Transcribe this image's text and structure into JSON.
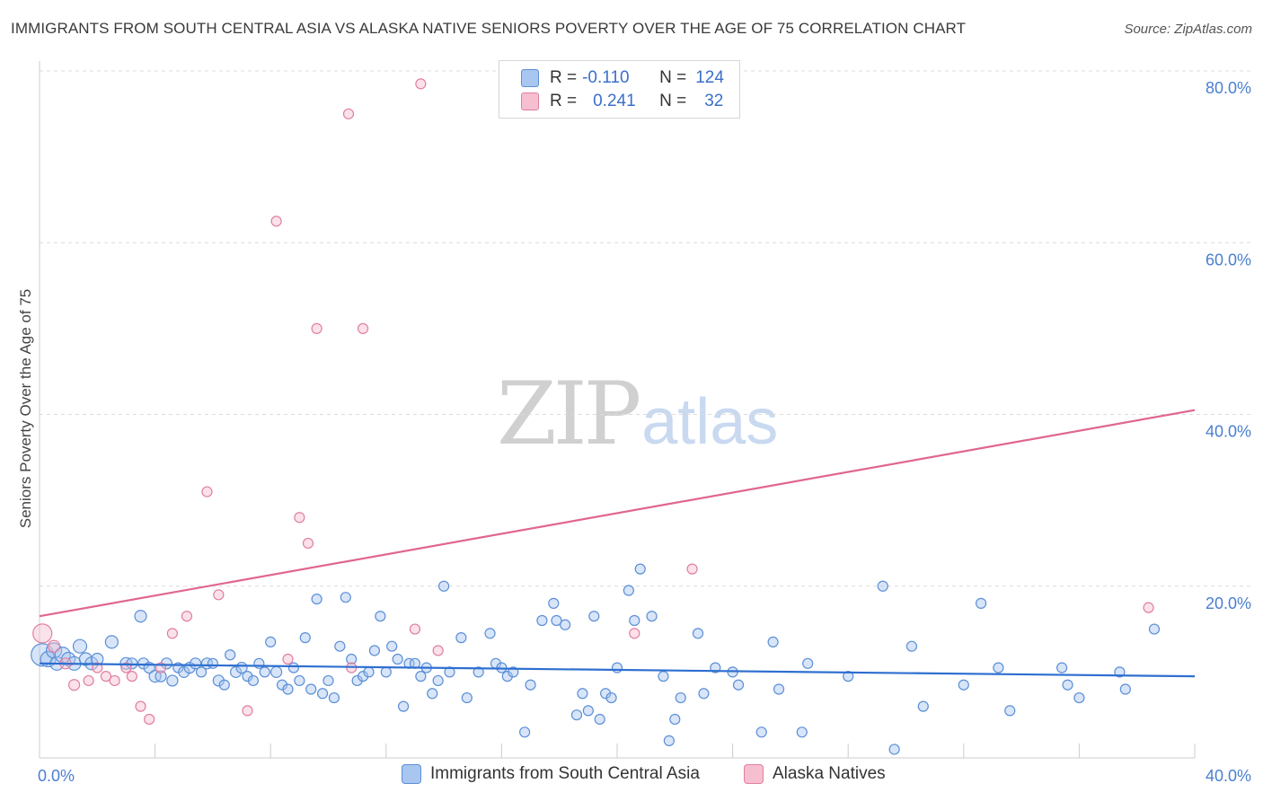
{
  "chart_data": {
    "type": "scatter",
    "title": "IMMIGRANTS FROM SOUTH CENTRAL ASIA VS ALASKA NATIVE SENIORS POVERTY OVER THE AGE OF 75 CORRELATION CHART",
    "source": "Source: ZipAtlas.com",
    "ylabel": "Seniors Poverty Over the Age of 75",
    "xlim": [
      0,
      40
    ],
    "ylim": [
      0,
      80
    ],
    "x_tick_labels": [
      "0.0%",
      "40.0%"
    ],
    "y_ticks": [
      20,
      40,
      60,
      80
    ],
    "y_tick_labels": [
      "20.0%",
      "40.0%",
      "60.0%",
      "80.0%"
    ],
    "watermark": {
      "zip": "ZIP",
      "atlas": "atlas"
    },
    "colors": {
      "blue_fill": "#a8c6ef",
      "blue_stroke": "#5b8fd6",
      "blue_line": "#2e6fd0",
      "pink_fill": "#f6bfd0",
      "pink_stroke": "#e07f9f",
      "pink_line": "#e0668f",
      "accent_text": "#3b6fc9"
    },
    "legend_stats": [
      {
        "r_label": "R =",
        "r": "-0.110",
        "n_label": "N =",
        "n": "124",
        "color": "blue"
      },
      {
        "r_label": "R =",
        "r": "0.241",
        "n_label": "N =",
        "n": "32",
        "color": "pink"
      }
    ],
    "series": [
      {
        "name": "Immigrants from South Central Asia",
        "color": "blue",
        "trend": {
          "x0": 0,
          "y0": 11.0,
          "x1": 40,
          "y1": 9.5
        },
        "points": [
          [
            0.1,
            12.0,
            22
          ],
          [
            0.3,
            11.5,
            14
          ],
          [
            0.5,
            12.5,
            14
          ],
          [
            0.6,
            11.0,
            12
          ],
          [
            0.8,
            12.0,
            14
          ],
          [
            1.0,
            11.5,
            12
          ],
          [
            1.2,
            11.0,
            12
          ],
          [
            1.4,
            13.0,
            12
          ],
          [
            1.6,
            11.5,
            11
          ],
          [
            1.8,
            11.0,
            11
          ],
          [
            2.0,
            11.5,
            10
          ],
          [
            2.5,
            13.5,
            11
          ],
          [
            3.0,
            11.0,
            10
          ],
          [
            3.2,
            11.0,
            9
          ],
          [
            3.5,
            16.5,
            10
          ],
          [
            3.6,
            11.0,
            9
          ],
          [
            3.8,
            10.5,
            9
          ],
          [
            4.0,
            9.5,
            10
          ],
          [
            4.2,
            9.5,
            9
          ],
          [
            4.4,
            11.0,
            9
          ],
          [
            4.6,
            9.0,
            9
          ],
          [
            4.8,
            10.5,
            8
          ],
          [
            5.0,
            10.0,
            9
          ],
          [
            5.2,
            10.5,
            9
          ],
          [
            5.4,
            11.0,
            9
          ],
          [
            5.6,
            10.0,
            8
          ],
          [
            5.8,
            11.0,
            9
          ],
          [
            6.0,
            11.0,
            8
          ],
          [
            6.2,
            9.0,
            9
          ],
          [
            6.4,
            8.5,
            8
          ],
          [
            6.6,
            12.0,
            8
          ],
          [
            6.8,
            10.0,
            9
          ],
          [
            7.0,
            10.5,
            9
          ],
          [
            7.2,
            9.5,
            8
          ],
          [
            7.4,
            9.0,
            8
          ],
          [
            7.6,
            11.0,
            8
          ],
          [
            7.8,
            10.0,
            8
          ],
          [
            8.0,
            13.5,
            8
          ],
          [
            8.2,
            10.0,
            9
          ],
          [
            8.4,
            8.5,
            8
          ],
          [
            8.6,
            8.0,
            8
          ],
          [
            8.8,
            10.5,
            8
          ],
          [
            9.0,
            9.0,
            8
          ],
          [
            9.2,
            14.0,
            8
          ],
          [
            9.4,
            8.0,
            8
          ],
          [
            9.6,
            18.5,
            8
          ],
          [
            9.8,
            7.5,
            8
          ],
          [
            10.0,
            9.0,
            8
          ],
          [
            10.2,
            7.0,
            8
          ],
          [
            10.4,
            13.0,
            8
          ],
          [
            10.6,
            18.7,
            8
          ],
          [
            10.8,
            11.5,
            8
          ],
          [
            11.0,
            9.0,
            8
          ],
          [
            11.2,
            9.5,
            8
          ],
          [
            11.4,
            10.0,
            8
          ],
          [
            11.6,
            12.5,
            8
          ],
          [
            11.8,
            16.5,
            8
          ],
          [
            12.0,
            10.0,
            8
          ],
          [
            12.2,
            13.0,
            8
          ],
          [
            12.4,
            11.5,
            8
          ],
          [
            12.6,
            6.0,
            8
          ],
          [
            12.8,
            11.0,
            8
          ],
          [
            13.0,
            11.0,
            8
          ],
          [
            13.2,
            9.5,
            8
          ],
          [
            13.4,
            10.5,
            8
          ],
          [
            13.6,
            7.5,
            8
          ],
          [
            13.8,
            9.0,
            8
          ],
          [
            14.0,
            20.0,
            8
          ],
          [
            14.2,
            10.0,
            8
          ],
          [
            14.6,
            14.0,
            8
          ],
          [
            14.8,
            7.0,
            8
          ],
          [
            15.2,
            10.0,
            8
          ],
          [
            15.6,
            14.5,
            8
          ],
          [
            15.8,
            11.0,
            8
          ],
          [
            16.0,
            10.5,
            8
          ],
          [
            16.2,
            9.5,
            8
          ],
          [
            16.4,
            10.0,
            8
          ],
          [
            16.8,
            3.0,
            8
          ],
          [
            17.0,
            8.5,
            8
          ],
          [
            17.4,
            16.0,
            8
          ],
          [
            17.8,
            18.0,
            8
          ],
          [
            17.9,
            16.0,
            8
          ],
          [
            18.2,
            15.5,
            8
          ],
          [
            18.6,
            5.0,
            8
          ],
          [
            18.8,
            7.5,
            8
          ],
          [
            19.0,
            5.5,
            8
          ],
          [
            19.2,
            16.5,
            8
          ],
          [
            19.4,
            4.5,
            8
          ],
          [
            19.6,
            7.5,
            8
          ],
          [
            19.8,
            7.0,
            8
          ],
          [
            20.0,
            10.5,
            8
          ],
          [
            20.4,
            19.5,
            8
          ],
          [
            20.6,
            16.0,
            8
          ],
          [
            20.8,
            22.0,
            8
          ],
          [
            21.2,
            16.5,
            8
          ],
          [
            21.6,
            9.5,
            8
          ],
          [
            21.8,
            2.0,
            8
          ],
          [
            22.0,
            4.5,
            8
          ],
          [
            22.2,
            7.0,
            8
          ],
          [
            22.8,
            14.5,
            8
          ],
          [
            23.0,
            7.5,
            8
          ],
          [
            23.4,
            10.5,
            8
          ],
          [
            24.0,
            10.0,
            8
          ],
          [
            24.2,
            8.5,
            8
          ],
          [
            25.0,
            3.0,
            8
          ],
          [
            25.4,
            13.5,
            8
          ],
          [
            25.6,
            8.0,
            8
          ],
          [
            26.4,
            3.0,
            8
          ],
          [
            26.6,
            11.0,
            8
          ],
          [
            28.0,
            9.5,
            8
          ],
          [
            29.2,
            20.0,
            8
          ],
          [
            29.6,
            1.0,
            8
          ],
          [
            30.2,
            13.0,
            8
          ],
          [
            30.6,
            6.0,
            8
          ],
          [
            32.0,
            8.5,
            8
          ],
          [
            32.6,
            18.0,
            8
          ],
          [
            33.2,
            10.5,
            8
          ],
          [
            33.6,
            5.5,
            8
          ],
          [
            35.4,
            10.5,
            8
          ],
          [
            35.6,
            8.5,
            8
          ],
          [
            36.0,
            7.0,
            8
          ],
          [
            37.4,
            10.0,
            8
          ],
          [
            37.6,
            8.0,
            8
          ],
          [
            38.6,
            15.0,
            8
          ]
        ]
      },
      {
        "name": "Alaska Natives",
        "color": "pink",
        "trend": {
          "x0": 0,
          "y0": 16.5,
          "x1": 40,
          "y1": 40.5
        },
        "points": [
          [
            0.1,
            14.5,
            18
          ],
          [
            0.5,
            13.0,
            10
          ],
          [
            0.9,
            11.0,
            9
          ],
          [
            1.2,
            8.5,
            9
          ],
          [
            1.7,
            9.0,
            8
          ],
          [
            2.0,
            10.5,
            8
          ],
          [
            2.3,
            9.5,
            8
          ],
          [
            2.6,
            9.0,
            8
          ],
          [
            3.0,
            10.5,
            8
          ],
          [
            3.2,
            9.5,
            8
          ],
          [
            3.5,
            6.0,
            8
          ],
          [
            3.8,
            4.5,
            8
          ],
          [
            4.2,
            10.5,
            8
          ],
          [
            4.6,
            14.5,
            8
          ],
          [
            5.1,
            16.5,
            8
          ],
          [
            5.8,
            31.0,
            8
          ],
          [
            6.2,
            19.0,
            8
          ],
          [
            7.2,
            5.5,
            8
          ],
          [
            8.2,
            62.5,
            8
          ],
          [
            8.6,
            11.5,
            8
          ],
          [
            9.0,
            28.0,
            8
          ],
          [
            9.3,
            25.0,
            8
          ],
          [
            9.6,
            50.0,
            8
          ],
          [
            10.7,
            75.0,
            8
          ],
          [
            10.8,
            10.5,
            8
          ],
          [
            11.2,
            50.0,
            8
          ],
          [
            13.0,
            15.0,
            8
          ],
          [
            13.2,
            78.5,
            8
          ],
          [
            13.8,
            12.5,
            8
          ],
          [
            20.6,
            14.5,
            8
          ],
          [
            22.6,
            22.0,
            8
          ],
          [
            38.4,
            17.5,
            8
          ]
        ]
      }
    ]
  }
}
